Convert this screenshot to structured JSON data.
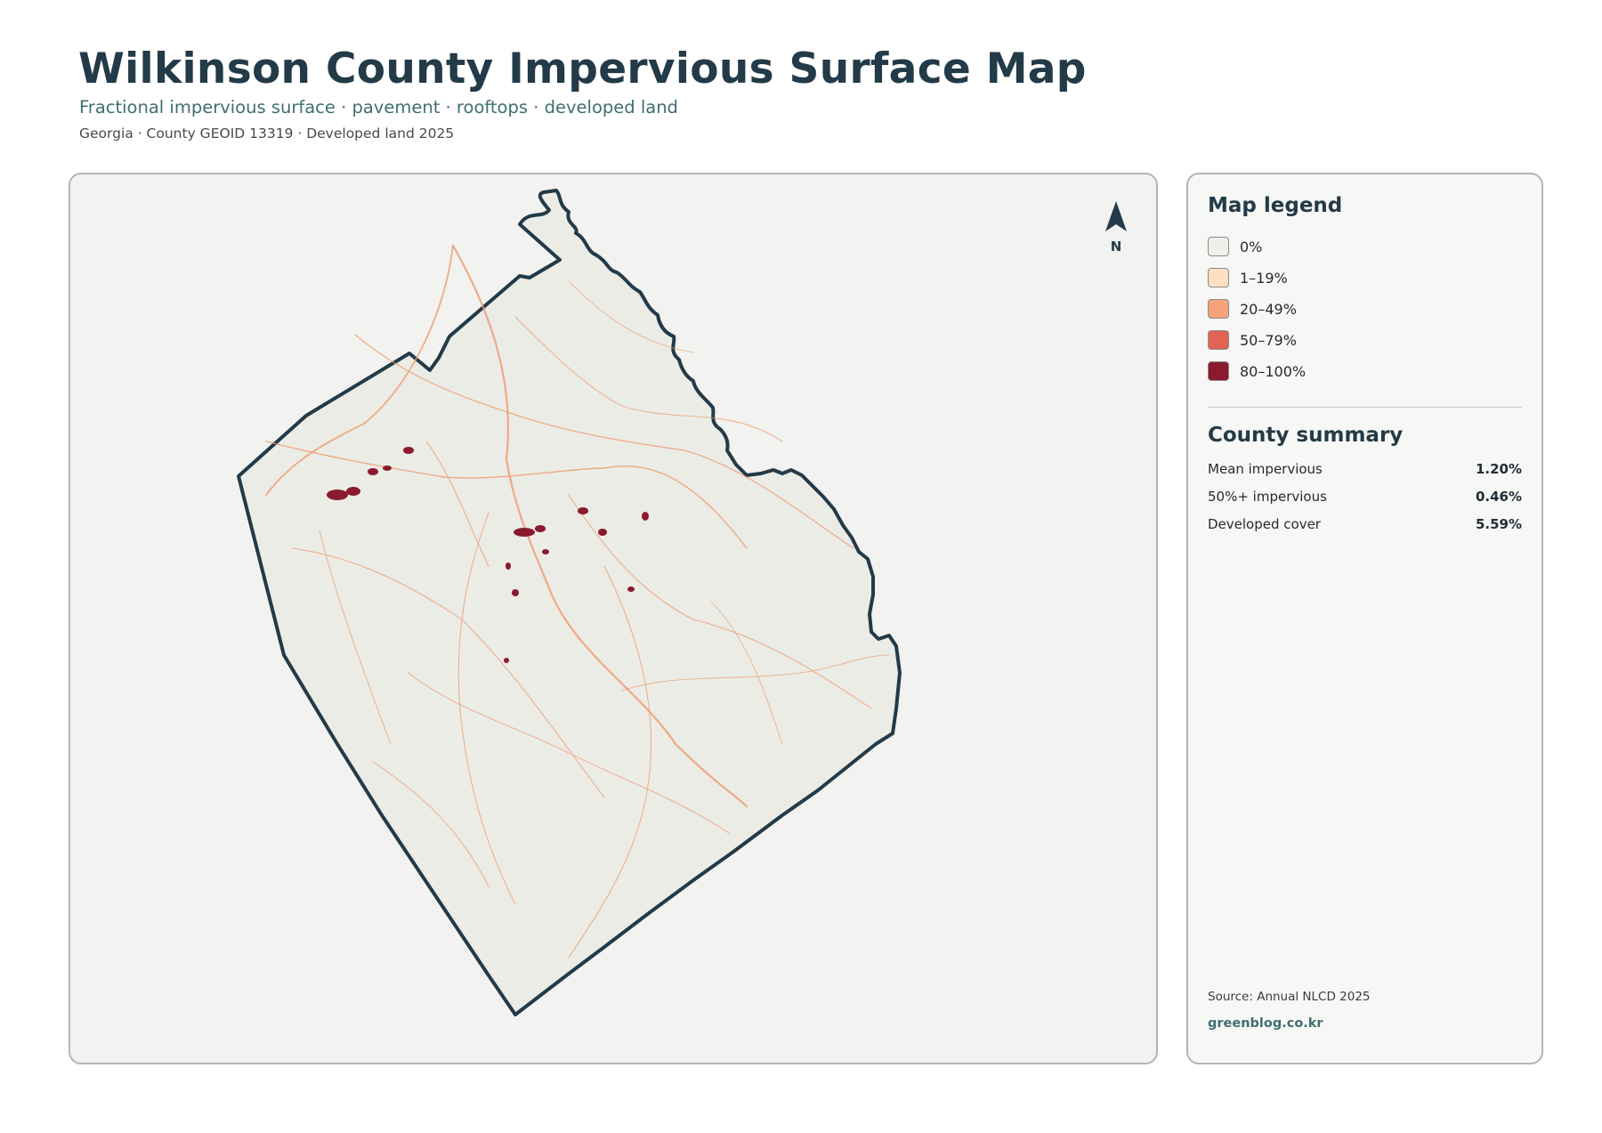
{
  "header": {
    "title": "Wilkinson County Impervious Surface Map",
    "subtitle": "Fractional impervious surface · pavement · rooftops · developed land",
    "meta": "Georgia · County GEOID 13319 · Developed land 2025"
  },
  "map": {
    "north_label": "N",
    "land_color": "#ebece6",
    "boundary_color": "#233a48",
    "road_color": "#ee9a6c",
    "urban_color": "#8b1a2e"
  },
  "legend": {
    "heading": "Map legend",
    "items": [
      {
        "label": "0%",
        "color": "#efefec"
      },
      {
        "label": "1–19%",
        "color": "#fde0c2"
      },
      {
        "label": "20–49%",
        "color": "#f5a47a"
      },
      {
        "label": "50–79%",
        "color": "#e06353"
      },
      {
        "label": "80–100%",
        "color": "#8b1a2e"
      }
    ]
  },
  "summary": {
    "heading": "County summary",
    "rows": [
      {
        "label": "Mean impervious",
        "value": "1.20%"
      },
      {
        "label": "50%+ impervious",
        "value": "0.46%"
      },
      {
        "label": "Developed cover",
        "value": "5.59%"
      }
    ]
  },
  "footer": {
    "source": "Source: Annual NLCD 2025",
    "site": "greenblog.co.kr"
  }
}
